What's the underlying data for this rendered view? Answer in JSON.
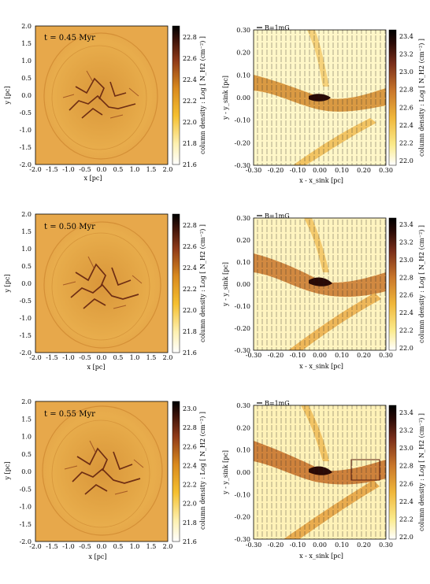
{
  "figure": {
    "rows": [
      {
        "left": {
          "time_label": "t = 0.45 Myr",
          "xlabel": "x [pc]",
          "ylabel": "y [pc]",
          "x_ticks": [
            "-2.0",
            "-1.5",
            "-1.0",
            "-0.5",
            "0.0",
            "0.5",
            "1.0",
            "1.5",
            "2.0"
          ],
          "y_ticks": [
            "2.0",
            "1.5",
            "1.0",
            "0.5",
            "0.0",
            "-0.5",
            "-1.0",
            "-1.5",
            "-2.0"
          ],
          "colorbar_label": "column density : Log [ N_H2 (cm⁻²) ]",
          "colorbar_ticks": [
            "22.8",
            "22.6",
            "22.4",
            "22.2",
            "22.0",
            "21.8",
            "21.6"
          ]
        },
        "right": {
          "field_label": "B=1mG",
          "xlabel": "x - x_sink [pc]",
          "ylabel": "y - y_sink [pc]",
          "x_ticks": [
            "-0.30",
            "-0.20",
            "-0.10",
            "0.00",
            "0.10",
            "0.20",
            "0.30"
          ],
          "y_ticks": [
            "0.30",
            "0.20",
            "0.10",
            "0.00",
            "-0.10",
            "-0.20",
            "-0.30"
          ],
          "colorbar_label": "column density : Log [ N_H2 (cm⁻²) ]",
          "colorbar_ticks": [
            "23.4",
            "23.2",
            "23.0",
            "22.8",
            "22.6",
            "22.4",
            "22.2",
            "22.0"
          ]
        }
      },
      {
        "left": {
          "time_label": "t = 0.50 Myr",
          "xlabel": "x [pc]",
          "ylabel": "y [pc]",
          "x_ticks": [
            "-2.0",
            "-1.5",
            "-1.0",
            "-0.5",
            "0.0",
            "0.5",
            "1.0",
            "1.5",
            "2.0"
          ],
          "y_ticks": [
            "2.0",
            "1.5",
            "1.0",
            "0.5",
            "0.0",
            "-0.5",
            "-1.0",
            "-1.5",
            "-2.0"
          ],
          "colorbar_label": "column density : Log [ N_H2 (cm⁻²) ]",
          "colorbar_ticks": [
            "22.8",
            "22.6",
            "22.4",
            "22.2",
            "22.0",
            "21.8",
            "21.6"
          ]
        },
        "right": {
          "field_label": "B=1mG",
          "xlabel": "x - x_sink [pc]",
          "ylabel": "y - y_sink [pc]",
          "x_ticks": [
            "-0.30",
            "-0.20",
            "-0.10",
            "0.00",
            "0.10",
            "0.20",
            "0.30"
          ],
          "y_ticks": [
            "0.30",
            "0.20",
            "0.10",
            "0.00",
            "-0.10",
            "-0.20",
            "-0.30"
          ],
          "colorbar_label": "column density : Log [ N_H2 (cm⁻²) ]",
          "colorbar_ticks": [
            "23.4",
            "23.2",
            "23.0",
            "22.8",
            "22.6",
            "22.4",
            "22.2",
            "22.0"
          ]
        }
      },
      {
        "left": {
          "time_label": "t = 0.55 Myr",
          "xlabel": "x [pc]",
          "ylabel": "y [pc]",
          "x_ticks": [
            "-2.0",
            "-1.5",
            "-1.0",
            "-0.5",
            "0.0",
            "0.5",
            "1.0",
            "1.5",
            "2.0"
          ],
          "y_ticks": [
            "2.0",
            "1.5",
            "1.0",
            "0.5",
            "0.0",
            "-0.5",
            "-1.0",
            "-1.5",
            "-2.0"
          ],
          "colorbar_label": "column density : Log [ N_H2 (cm⁻²) ]",
          "colorbar_ticks": [
            "23.0",
            "22.8",
            "22.6",
            "22.4",
            "22.2",
            "22.0",
            "21.8",
            "21.6"
          ]
        },
        "right": {
          "field_label": "B=1mG",
          "xlabel": "x - x_sink [pc]",
          "ylabel": "y - y_sink [pc]",
          "x_ticks": [
            "-0.30",
            "-0.20",
            "-0.10",
            "0.00",
            "0.10",
            "0.20",
            "0.30"
          ],
          "y_ticks": [
            "0.30",
            "0.20",
            "0.10",
            "0.00",
            "-0.10",
            "-0.20",
            "-0.30"
          ],
          "colorbar_label": "column density : Log [ N_H2 (cm⁻²) ]",
          "colorbar_ticks": [
            "23.4",
            "23.2",
            "23.0",
            "22.8",
            "22.6",
            "22.4",
            "22.2",
            "22.0"
          ]
        }
      }
    ]
  }
}
